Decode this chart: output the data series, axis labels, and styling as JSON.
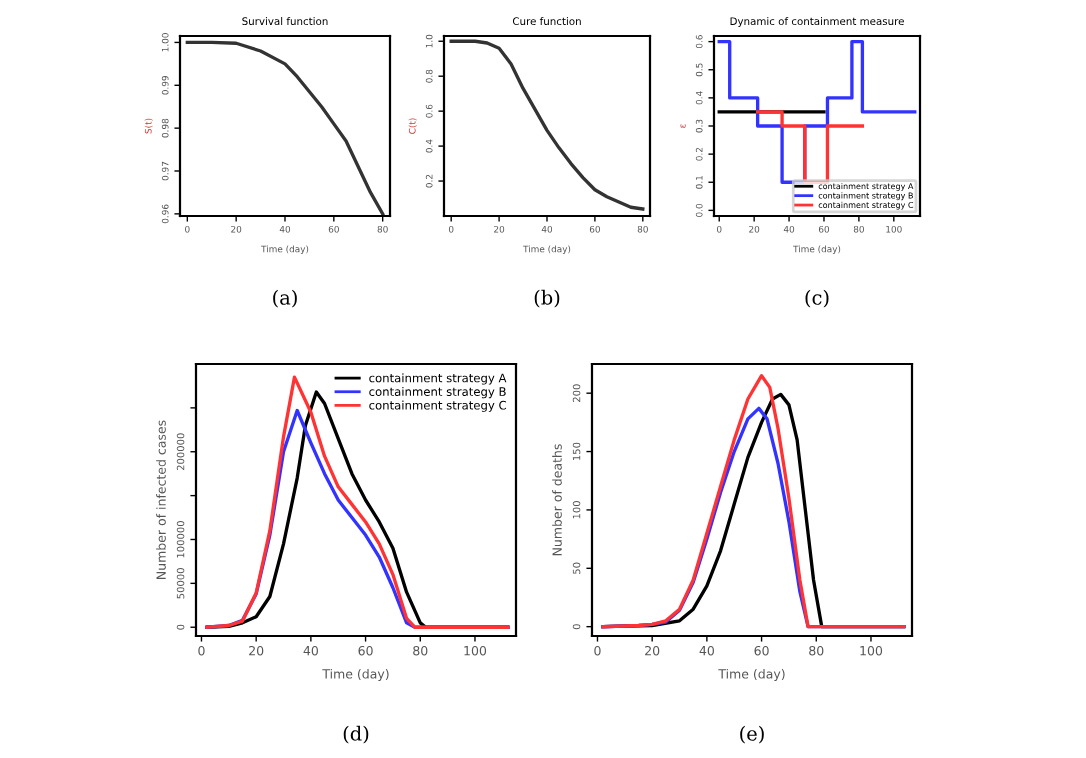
{
  "chart_data": [
    {
      "type": "line",
      "title": "Survival function",
      "xlabel": "Time (day)",
      "ylabel": "S(t)",
      "annotations": [
        "(a)"
      ],
      "xlim": [
        -3,
        83
      ],
      "ylim": [
        0.9595,
        1.0015
      ],
      "xticks": [
        0,
        20,
        40,
        60,
        80
      ],
      "yticks": [
        0.96,
        0.97,
        0.98,
        0.99,
        {
          "value": 1.0,
          "label": "1.00"
        }
      ],
      "grid": false,
      "legend": false,
      "series": [
        {
          "color": "#333333",
          "x": [
            0,
            10,
            20,
            30,
            40,
            45,
            50,
            55,
            60,
            65,
            70,
            75,
            80
          ],
          "values": [
            1.0,
            1.0,
            0.9998,
            0.998,
            0.995,
            0.992,
            0.9885,
            0.985,
            0.981,
            0.977,
            0.971,
            0.965,
            0.96
          ]
        }
      ]
    },
    {
      "type": "line",
      "title": "Cure function",
      "xlabel": "Time (day)",
      "ylabel": "C(t)",
      "annotations": [
        "(b)"
      ],
      "xlim": [
        -3,
        83
      ],
      "ylim": [
        0.0,
        1.03
      ],
      "xticks": [
        0,
        20,
        40,
        60,
        80
      ],
      "yticks": [
        0.2,
        0.4,
        0.6,
        0.8,
        {
          "value": 1.0,
          "label": "1.0"
        }
      ],
      "grid": false,
      "legend": false,
      "series": [
        {
          "color": "#333333",
          "x": [
            0,
            10,
            15,
            20,
            25,
            30,
            35,
            40,
            45,
            50,
            55,
            60,
            65,
            70,
            75,
            80
          ],
          "values": [
            1.0,
            1.0,
            0.99,
            0.96,
            0.87,
            0.73,
            0.61,
            0.49,
            0.39,
            0.3,
            0.22,
            0.15,
            0.11,
            0.08,
            0.05,
            0.04
          ]
        }
      ]
    },
    {
      "type": "step",
      "title": "Dynamic of containment measure",
      "xlabel": "Time (day)",
      "ylabel": "ε",
      "annotations": [
        "(c)"
      ],
      "xlim": [
        -3,
        115
      ],
      "ylim": [
        -0.02,
        0.62
      ],
      "xticks": [
        0,
        20,
        40,
        60,
        80,
        100
      ],
      "yticks": [
        {
          "value": 0,
          "label": "0.0"
        },
        0.1,
        0.2,
        0.3,
        0.4,
        0.5,
        0.6
      ],
      "grid": false,
      "legend": "bottom right",
      "series": [
        {
          "name": "containment strategy A",
          "color": "#000000",
          "x": [
            0,
            60
          ],
          "values": [
            0.35,
            0.35
          ]
        },
        {
          "name": "containment strategy B",
          "color": "#3333ff",
          "x": [
            0,
            6,
            22,
            36,
            49,
            62,
            76,
            82,
            112
          ],
          "values": [
            0.6,
            0.4,
            0.3,
            0.1,
            0.3,
            0.4,
            0.6,
            0.35,
            0.35
          ]
        },
        {
          "name": "containment strategy C",
          "color": "#ff3333",
          "x": [
            22,
            36,
            49,
            62,
            82
          ],
          "values": [
            0.35,
            0.3,
            0.1,
            0.3,
            0.3
          ]
        }
      ]
    },
    {
      "type": "line",
      "xlabel": "Time (day)",
      "ylabel": "Number of infected cases",
      "annotations": [
        "(d)"
      ],
      "xlim": [
        -2,
        115
      ],
      "ylim": [
        -10000,
        300000
      ],
      "xticks": [
        0,
        20,
        40,
        60,
        80,
        100
      ],
      "yticks": [
        0,
        50000,
        100000,
        {
          "value": 150000,
          "label": null
        },
        200000,
        {
          "value": 250000,
          "label": null
        }
      ],
      "grid": false,
      "legend": "top right",
      "series": [
        {
          "name": "containment strategy A",
          "color": "#000000",
          "x": [
            2,
            10,
            15,
            20,
            25,
            30,
            35,
            38,
            42,
            45,
            50,
            55,
            60,
            65,
            70,
            75,
            80,
            82,
            112
          ],
          "values": [
            0,
            1000,
            5000,
            12000,
            35000,
            95000,
            170000,
            230000,
            268000,
            255000,
            215000,
            175000,
            145000,
            120000,
            90000,
            40000,
            5000,
            0,
            0
          ]
        },
        {
          "name": "containment strategy B",
          "color": "#3333ff",
          "x": [
            2,
            10,
            15,
            20,
            25,
            30,
            35,
            40,
            45,
            50,
            55,
            60,
            65,
            70,
            75,
            78,
            112
          ],
          "values": [
            0,
            2000,
            8000,
            38000,
            105000,
            200000,
            247000,
            210000,
            175000,
            145000,
            125000,
            105000,
            80000,
            45000,
            5000,
            0,
            0
          ]
        },
        {
          "name": "containment strategy C",
          "color": "#ff3333",
          "x": [
            2,
            10,
            15,
            20,
            25,
            30,
            34,
            40,
            45,
            50,
            55,
            60,
            65,
            70,
            75,
            78,
            112
          ],
          "values": [
            0,
            2000,
            7000,
            39000,
            110000,
            217000,
            285000,
            245000,
            195000,
            160000,
            140000,
            120000,
            95000,
            60000,
            10000,
            0,
            0
          ]
        }
      ]
    },
    {
      "type": "line",
      "xlabel": "Time (day)",
      "ylabel": "Number of deaths",
      "annotations": [
        "(e)"
      ],
      "xlim": [
        -2,
        115
      ],
      "ylim": [
        -8,
        225
      ],
      "xticks": [
        0,
        20,
        40,
        60,
        80,
        100
      ],
      "yticks": [
        0,
        50,
        100,
        150,
        200
      ],
      "grid": false,
      "legend": false,
      "series": [
        {
          "color": "#000000",
          "x": [
            2,
            20,
            30,
            35,
            40,
            45,
            50,
            55,
            60,
            64,
            67,
            70,
            73,
            76,
            79,
            82,
            112
          ],
          "values": [
            0,
            1,
            5,
            15,
            35,
            65,
            105,
            145,
            175,
            195,
            199,
            190,
            160,
            100,
            40,
            0,
            0
          ]
        },
        {
          "color": "#3333ff",
          "x": [
            2,
            15,
            20,
            25,
            30,
            35,
            40,
            45,
            50,
            55,
            59,
            62,
            66,
            70,
            74,
            77,
            112
          ],
          "values": [
            0,
            1,
            2,
            4,
            14,
            38,
            75,
            115,
            150,
            178,
            187,
            178,
            140,
            90,
            30,
            0,
            0
          ]
        },
        {
          "color": "#ff3333",
          "x": [
            2,
            15,
            20,
            25,
            30,
            35,
            40,
            45,
            50,
            55,
            60,
            63,
            66,
            70,
            74,
            77,
            112
          ],
          "values": [
            0,
            1,
            2,
            5,
            15,
            40,
            80,
            120,
            160,
            195,
            215,
            205,
            170,
            110,
            40,
            0,
            0
          ]
        }
      ]
    }
  ]
}
